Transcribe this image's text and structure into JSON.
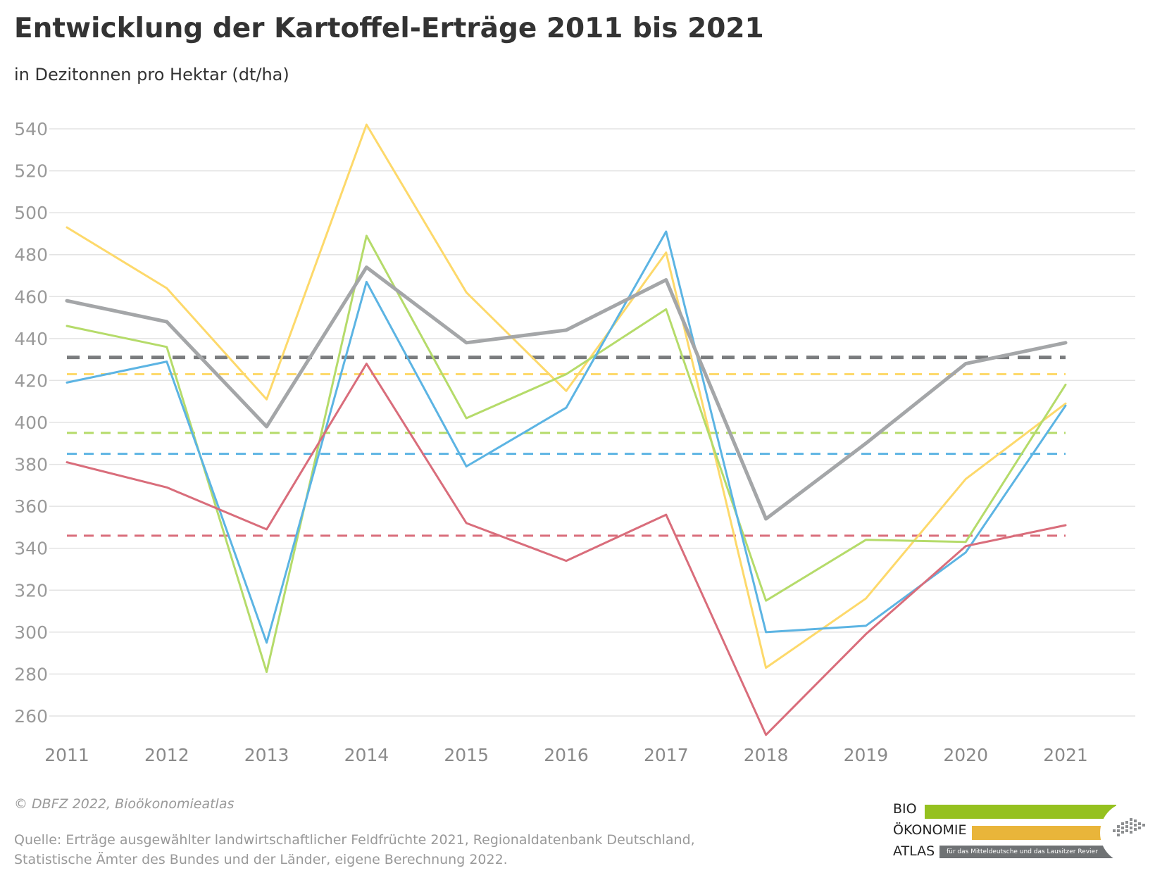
{
  "header": {
    "title": "Entwicklung der Kartoffel-Erträge 2011 bis 2021",
    "subtitle": "in Dezitonnen pro Hektar (dt/ha)"
  },
  "footer": {
    "copyright": "© DBFZ 2022, Bioökonomieatlas",
    "source_line1": "Quelle: Erträge ausgewählter landwirtschaftlicher Feldfrüchte 2021, Regionaldatenbank Deutschland,",
    "source_line2": "Statistische Ämter des Bundes und der Länder, eigene Berechnung 2022."
  },
  "logo": {
    "word1": "BIO",
    "word2": "ÖKONOMIE",
    "word3": "ATLAS",
    "tagline": "für das Mitteldeutsche und das Lausitzer Revier",
    "colors": [
      "#95c11f",
      "#e9b53a",
      "#6f7274"
    ]
  },
  "chart_data": {
    "type": "line",
    "title": "Entwicklung der Kartoffel-Erträge 2011 bis 2021",
    "subtitle": "in Dezitonnen pro Hektar (dt/ha)",
    "x": [
      2011,
      2012,
      2013,
      2014,
      2015,
      2016,
      2017,
      2018,
      2019,
      2020,
      2021
    ],
    "ylim": [
      250,
      545
    ],
    "yticks": [
      260,
      280,
      300,
      320,
      340,
      360,
      380,
      400,
      420,
      440,
      460,
      480,
      500,
      520,
      540
    ],
    "grid": true,
    "legend": "none",
    "series": [
      {
        "color": "#fdd96b",
        "values": [
          493,
          464,
          411,
          542,
          462,
          415,
          481,
          283,
          316,
          373,
          409
        ],
        "mean": 423,
        "width": 3
      },
      {
        "color": "#b5db6a",
        "values": [
          446,
          436,
          281,
          489,
          402,
          423,
          454,
          315,
          344,
          343,
          418
        ],
        "mean": 395,
        "width": 3
      },
      {
        "color": "#5cb4e3",
        "values": [
          419,
          429,
          295,
          467,
          379,
          407,
          491,
          300,
          303,
          338,
          408
        ],
        "mean": 385,
        "width": 3
      },
      {
        "color": "#d96d7b",
        "values": [
          381,
          369,
          349,
          428,
          352,
          334,
          356,
          251,
          299,
          341,
          351
        ],
        "mean": 346,
        "width": 3
      },
      {
        "color": "#a4a6a8",
        "values": [
          458,
          448,
          398,
          474,
          438,
          444,
          468,
          354,
          390,
          428,
          438
        ],
        "mean": 431,
        "width": 5,
        "mean_color": "#7a7c7e"
      }
    ]
  }
}
